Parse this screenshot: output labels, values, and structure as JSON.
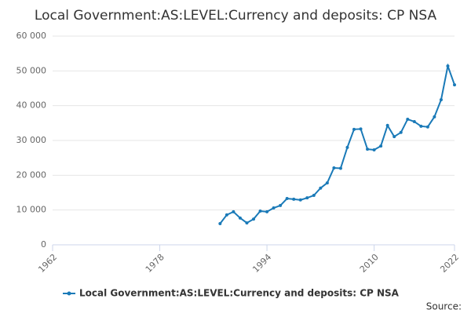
{
  "chart_data": {
    "type": "line",
    "title": "Local Government:AS:LEVEL:Currency and deposits: CP NSA",
    "source": "Source:",
    "x": [
      1987,
      1988,
      1989,
      1990,
      1991,
      1992,
      1993,
      1994,
      1995,
      1996,
      1997,
      1998,
      1999,
      2000,
      2001,
      2002,
      2003,
      2004,
      2005,
      2006,
      2007,
      2008,
      2009,
      2010,
      2011,
      2012,
      2013,
      2014,
      2015,
      2016,
      2017,
      2018,
      2019,
      2020,
      2021,
      2022
    ],
    "series": [
      {
        "name": "Local Government:AS:LEVEL:Currency and deposits: CP NSA",
        "color": "#1a7ab8",
        "values": [
          6100,
          8600,
          9500,
          7700,
          6300,
          7400,
          9700,
          9500,
          10600,
          11300,
          13300,
          13100,
          12900,
          13500,
          14200,
          16300,
          17800,
          22100,
          22000,
          28000,
          33200,
          33300,
          27500,
          27300,
          28400,
          34300,
          31100,
          32300,
          36100,
          35400,
          34100,
          33900,
          36800,
          41700,
          51400,
          46000
        ]
      }
    ],
    "xlim": [
      1962,
      2022
    ],
    "xticks": [
      1962,
      1978,
      1994,
      2010,
      2022
    ],
    "ylim": [
      0,
      60000
    ],
    "yticks": [
      0,
      {
        "value": 10000,
        "label": "10 000"
      },
      {
        "value": 20000,
        "label": "20 000"
      },
      {
        "value": 30000,
        "label": "30 000"
      },
      {
        "value": 40000,
        "label": "40 000"
      },
      {
        "value": 50000,
        "label": "50 000"
      },
      {
        "value": 60000,
        "label": "60 000"
      }
    ],
    "grid": true,
    "legend": "bottom"
  }
}
